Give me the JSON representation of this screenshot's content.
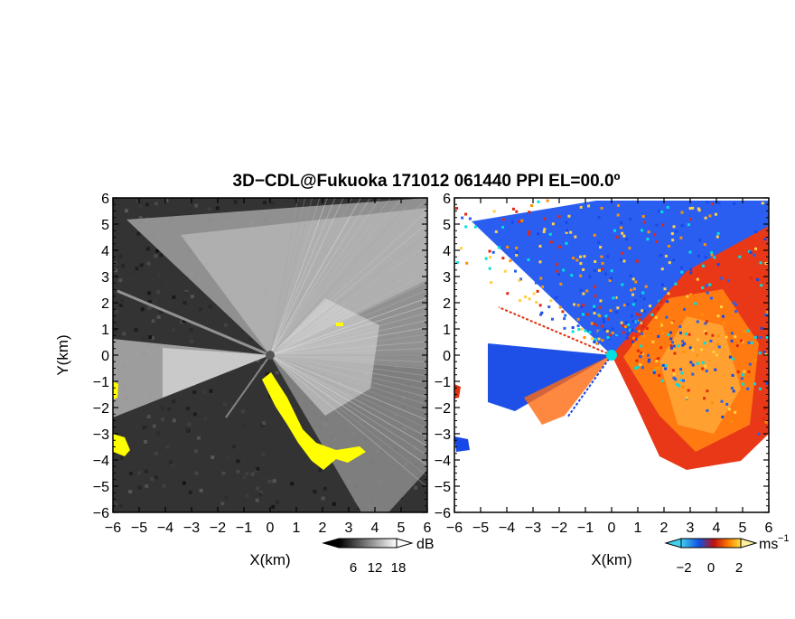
{
  "title": "3D−CDL@Fukuoka 171012 061440 PPI EL=00.0º",
  "chart_data": [
    {
      "type": "heatmap",
      "panel": "reflectivity",
      "xlabel": "X(km)",
      "ylabel": "Y(km)",
      "xlim": [
        -6,
        6
      ],
      "ylim": [
        -6,
        6
      ],
      "x_ticks": [
        "−6",
        "−5",
        "−4",
        "−3",
        "−2",
        "−1",
        "0",
        "1",
        "2",
        "3",
        "4",
        "5",
        "6"
      ],
      "y_ticks": [
        "6",
        "5",
        "4",
        "3",
        "2",
        "1",
        "0",
        "−1",
        "−2",
        "−3",
        "−4",
        "−5",
        "−6"
      ],
      "colorbar": {
        "unit": "dB",
        "ticks": [
          "6",
          "12",
          "18"
        ],
        "colors": [
          "#000000",
          "#ffffff"
        ]
      }
    },
    {
      "type": "heatmap",
      "panel": "doppler-velocity",
      "xlabel": "X(km)",
      "xlim": [
        -6,
        6
      ],
      "ylim": [
        -6,
        6
      ],
      "x_ticks": [
        "−6",
        "−5",
        "−4",
        "−3",
        "−2",
        "−1",
        "0",
        "1",
        "2",
        "3",
        "4",
        "5",
        "6"
      ],
      "y_ticks": [
        "6",
        "5",
        "4",
        "3",
        "2",
        "1",
        "0",
        "−1",
        "−2",
        "−3",
        "−4",
        "−5",
        "−6"
      ],
      "colorbar": {
        "unit": "ms",
        "unit_exp": "−1",
        "ticks": [
          "−2",
          "0",
          "2"
        ],
        "colors": [
          "#40d0f0",
          "#1050e0",
          "#c01010",
          "#ff8000",
          "#ffe040"
        ]
      }
    }
  ],
  "colors": {
    "yellow": "#ffff00",
    "cyan": "#00e0e0",
    "blue": "#1848e8",
    "red": "#e02810",
    "orange": "#ff9000"
  }
}
